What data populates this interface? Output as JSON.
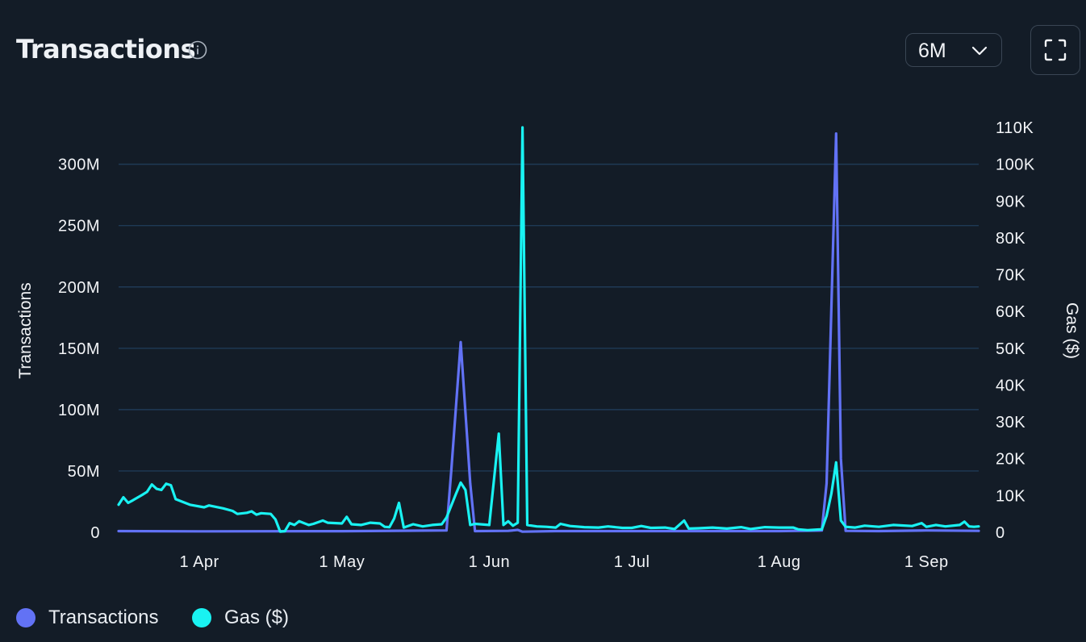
{
  "header": {
    "title": "Transactions",
    "info_icon": "info-circle-icon",
    "range_value": "6M",
    "range_icon": "chevron-down-icon",
    "fullscreen_icon": "fullscreen-icon"
  },
  "colors": {
    "background": "#131c27",
    "grid": "#1f3a56",
    "transactions": "#6272f5",
    "gas": "#19f2f2",
    "text": "#f2f4f7"
  },
  "legend": [
    {
      "label": "Transactions",
      "color": "#6272f5"
    },
    {
      "label": "Gas ($)",
      "color": "#19f2f2"
    }
  ],
  "chart_data": {
    "type": "line",
    "x_start": "2024-03-15",
    "x_end": "2024-09-12",
    "x_tick_dates": [
      "2024-04-01",
      "2024-05-01",
      "2024-06-01",
      "2024-07-01",
      "2024-08-01",
      "2024-09-01"
    ],
    "x_tick_labels": [
      "1 Apr",
      "1 May",
      "1 Jun",
      "1 Jul",
      "1 Aug",
      "1 Sep"
    ],
    "y_left": {
      "label": "Transactions",
      "range": [
        0,
        330000000
      ],
      "ticks": [
        0,
        50000000,
        100000000,
        150000000,
        200000000,
        250000000,
        300000000
      ],
      "tick_labels": [
        "0",
        "50M",
        "100M",
        "150M",
        "200M",
        "250M",
        "300M"
      ]
    },
    "y_right": {
      "label": "Gas ($)",
      "range": [
        0,
        110000
      ],
      "ticks": [
        0,
        10000,
        20000,
        30000,
        40000,
        50000,
        60000,
        70000,
        80000,
        90000,
        100000,
        110000
      ],
      "tick_labels": [
        "0",
        "10K",
        "20K",
        "30K",
        "40K",
        "50K",
        "60K",
        "70K",
        "80K",
        "90K",
        "100K",
        "110K"
      ]
    },
    "grid": true,
    "legend_position": "bottom-left",
    "series": [
      {
        "name": "Transactions",
        "axis": "left",
        "color": "#6272f5",
        "points": [
          [
            "2024-03-15",
            1000000
          ],
          [
            "2024-04-01",
            800000
          ],
          [
            "2024-05-01",
            900000
          ],
          [
            "2024-05-23",
            1500000
          ],
          [
            "2024-05-24",
            50000000
          ],
          [
            "2024-05-26",
            155000000
          ],
          [
            "2024-05-28",
            40000000
          ],
          [
            "2024-05-29",
            1000000
          ],
          [
            "2024-06-05",
            1200000
          ],
          [
            "2024-06-07",
            2000000
          ],
          [
            "2024-06-08",
            500000
          ],
          [
            "2024-06-15",
            1000000
          ],
          [
            "2024-07-01",
            1000000
          ],
          [
            "2024-08-01",
            1000000
          ],
          [
            "2024-08-10",
            1500000
          ],
          [
            "2024-08-11",
            40000000
          ],
          [
            "2024-08-13",
            325000000
          ],
          [
            "2024-08-14",
            60000000
          ],
          [
            "2024-08-15",
            1200000
          ],
          [
            "2024-08-22",
            1000000
          ],
          [
            "2024-09-01",
            1500000
          ],
          [
            "2024-09-12",
            1200000
          ]
        ]
      },
      {
        "name": "Gas ($)",
        "axis": "right",
        "color": "#19f2f2",
        "points": [
          [
            "2024-03-15",
            7500
          ],
          [
            "2024-03-16",
            9500
          ],
          [
            "2024-03-17",
            8000
          ],
          [
            "2024-03-18",
            8700
          ],
          [
            "2024-03-20",
            10200
          ],
          [
            "2024-03-21",
            11000
          ],
          [
            "2024-03-22",
            13000
          ],
          [
            "2024-03-23",
            11800
          ],
          [
            "2024-03-24",
            11500
          ],
          [
            "2024-03-25",
            13200
          ],
          [
            "2024-03-26",
            12800
          ],
          [
            "2024-03-27",
            9000
          ],
          [
            "2024-03-30",
            7500
          ],
          [
            "2024-04-02",
            6800
          ],
          [
            "2024-04-03",
            7300
          ],
          [
            "2024-04-06",
            6500
          ],
          [
            "2024-04-08",
            5800
          ],
          [
            "2024-04-09",
            5000
          ],
          [
            "2024-04-11",
            5300
          ],
          [
            "2024-04-12",
            5700
          ],
          [
            "2024-04-13",
            4800
          ],
          [
            "2024-04-14",
            5200
          ],
          [
            "2024-04-16",
            5000
          ],
          [
            "2024-04-17",
            3500
          ],
          [
            "2024-04-18",
            200
          ],
          [
            "2024-04-19",
            300
          ],
          [
            "2024-04-20",
            2500
          ],
          [
            "2024-04-21",
            2000
          ],
          [
            "2024-04-22",
            3000
          ],
          [
            "2024-04-24",
            2000
          ],
          [
            "2024-04-25",
            2300
          ],
          [
            "2024-04-27",
            3200
          ],
          [
            "2024-04-28",
            2600
          ],
          [
            "2024-05-01",
            2400
          ],
          [
            "2024-05-02",
            4200
          ],
          [
            "2024-05-03",
            2200
          ],
          [
            "2024-05-05",
            2000
          ],
          [
            "2024-05-07",
            2600
          ],
          [
            "2024-05-09",
            2400
          ],
          [
            "2024-05-10",
            1500
          ],
          [
            "2024-05-11",
            1400
          ],
          [
            "2024-05-12",
            3800
          ],
          [
            "2024-05-13",
            8000
          ],
          [
            "2024-05-14",
            1300
          ],
          [
            "2024-05-16",
            2200
          ],
          [
            "2024-05-18",
            1600
          ],
          [
            "2024-05-20",
            2000
          ],
          [
            "2024-05-22",
            2200
          ],
          [
            "2024-05-23",
            4000
          ],
          [
            "2024-05-25",
            10500
          ],
          [
            "2024-05-26",
            13500
          ],
          [
            "2024-05-27",
            11500
          ],
          [
            "2024-05-28",
            2000
          ],
          [
            "2024-05-29",
            2300
          ],
          [
            "2024-06-01",
            2000
          ],
          [
            "2024-06-03",
            26800
          ],
          [
            "2024-06-04",
            2000
          ],
          [
            "2024-06-05",
            3000
          ],
          [
            "2024-06-06",
            1800
          ],
          [
            "2024-06-07",
            2600
          ],
          [
            "2024-06-08",
            110000
          ],
          [
            "2024-06-09",
            2000
          ],
          [
            "2024-06-11",
            1600
          ],
          [
            "2024-06-13",
            1500
          ],
          [
            "2024-06-15",
            1300
          ],
          [
            "2024-06-16",
            2300
          ],
          [
            "2024-06-18",
            1700
          ],
          [
            "2024-06-21",
            1400
          ],
          [
            "2024-06-24",
            1300
          ],
          [
            "2024-06-26",
            1600
          ],
          [
            "2024-06-29",
            1200
          ],
          [
            "2024-07-01",
            1200
          ],
          [
            "2024-07-03",
            1700
          ],
          [
            "2024-07-05",
            1200
          ],
          [
            "2024-07-08",
            1300
          ],
          [
            "2024-07-10",
            900
          ],
          [
            "2024-07-12",
            3200
          ],
          [
            "2024-07-13",
            1000
          ],
          [
            "2024-07-15",
            1100
          ],
          [
            "2024-07-18",
            1300
          ],
          [
            "2024-07-21",
            1000
          ],
          [
            "2024-07-24",
            1400
          ],
          [
            "2024-07-26",
            900
          ],
          [
            "2024-07-29",
            1400
          ],
          [
            "2024-08-01",
            1300
          ],
          [
            "2024-08-04",
            1300
          ],
          [
            "2024-08-05",
            800
          ],
          [
            "2024-08-07",
            600
          ],
          [
            "2024-08-10",
            800
          ],
          [
            "2024-08-11",
            4500
          ],
          [
            "2024-08-12",
            10500
          ],
          [
            "2024-08-13",
            19000
          ],
          [
            "2024-08-14",
            3200
          ],
          [
            "2024-08-15",
            1500
          ],
          [
            "2024-08-17",
            1300
          ],
          [
            "2024-08-19",
            1800
          ],
          [
            "2024-08-22",
            1500
          ],
          [
            "2024-08-25",
            2000
          ],
          [
            "2024-08-29",
            1700
          ],
          [
            "2024-08-31",
            2500
          ],
          [
            "2024-09-01",
            1500
          ],
          [
            "2024-09-03",
            2000
          ],
          [
            "2024-09-05",
            1600
          ],
          [
            "2024-09-08",
            2000
          ],
          [
            "2024-09-09",
            2900
          ],
          [
            "2024-09-10",
            1600
          ],
          [
            "2024-09-11",
            1500
          ],
          [
            "2024-09-12",
            1600
          ]
        ]
      }
    ]
  }
}
